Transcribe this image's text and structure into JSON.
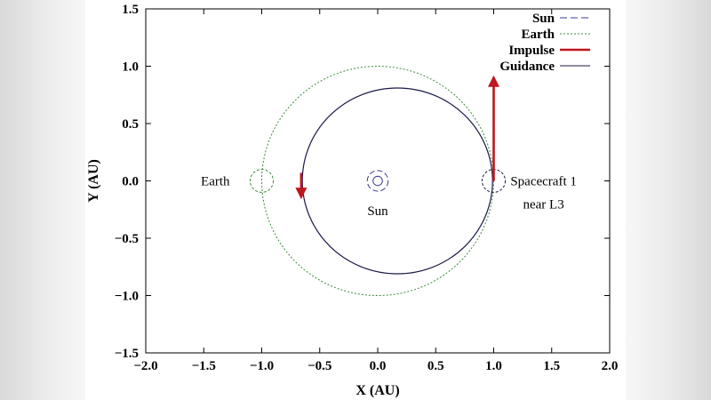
{
  "chart_data": {
    "type": "line",
    "xlabel": "X (AU)",
    "ylabel": "Y (AU)",
    "xlim": [
      -2.0,
      2.0
    ],
    "ylim": [
      -1.5,
      1.5
    ],
    "x_ticks": [
      "−2.0",
      "−1.5",
      "−1.0",
      "−0.5",
      "0.0",
      "0.5",
      "1.0",
      "1.5",
      "2.0"
    ],
    "y_ticks": [
      "1.5",
      "1.0",
      "0.5",
      "0.0",
      "−0.5",
      "−1.0",
      "−1.5"
    ],
    "x_tick_values": [
      -2.0,
      -1.5,
      -1.0,
      -0.5,
      0.0,
      0.5,
      1.0,
      1.5,
      2.0
    ],
    "y_tick_values": [
      1.5,
      1.0,
      0.5,
      0.0,
      -0.5,
      -1.0,
      -1.5
    ],
    "legend": {
      "position": "top-right",
      "entries": [
        {
          "label": "Sun",
          "style": "dashed",
          "color": "#3a3a8c"
        },
        {
          "label": "Earth",
          "style": "dotted",
          "color": "#3c8a3c"
        },
        {
          "label": "Impulse",
          "style": "solid-thick",
          "color": "#c0161e"
        },
        {
          "label": "Guidance",
          "style": "solid",
          "color": "#1a1a4a"
        }
      ]
    },
    "series": [
      {
        "name": "Earth",
        "shape": "circle",
        "center": [
          0.0,
          0.0
        ],
        "radius": 1.0,
        "color": "#3c8a3c"
      },
      {
        "name": "Guidance",
        "shape": "ellipse",
        "center": [
          0.17,
          0.0
        ],
        "rx": 0.82,
        "ry": 0.81,
        "color": "#1a1a4a"
      },
      {
        "name": "Sun",
        "shape": "small-orbit",
        "center": [
          0.0,
          0.0
        ],
        "radius": 0.09,
        "color": "#3a3a8c"
      }
    ],
    "impulses": [
      {
        "from": [
          1.0,
          0.0
        ],
        "to": [
          1.0,
          0.9
        ],
        "color": "#c0161e"
      },
      {
        "from": [
          -0.66,
          0.07
        ],
        "to": [
          -0.66,
          -0.14
        ],
        "color": "#c0161e"
      }
    ],
    "markers": [
      {
        "at": [
          -1.0,
          0.0
        ],
        "radius": 0.1,
        "color": "#3c8a3c"
      },
      {
        "at": [
          1.0,
          0.0
        ],
        "radius": 0.1,
        "color": "#1a1a4a"
      }
    ],
    "annotations": [
      {
        "text": "Earth",
        "at": [
          -1.4,
          0.0
        ]
      },
      {
        "text": "Sun",
        "at": [
          0.0,
          -0.26
        ]
      },
      {
        "text": "Spacecraft 1",
        "at": [
          1.43,
          0.0
        ]
      },
      {
        "text": "near L3",
        "at": [
          1.43,
          -0.2
        ]
      }
    ]
  }
}
